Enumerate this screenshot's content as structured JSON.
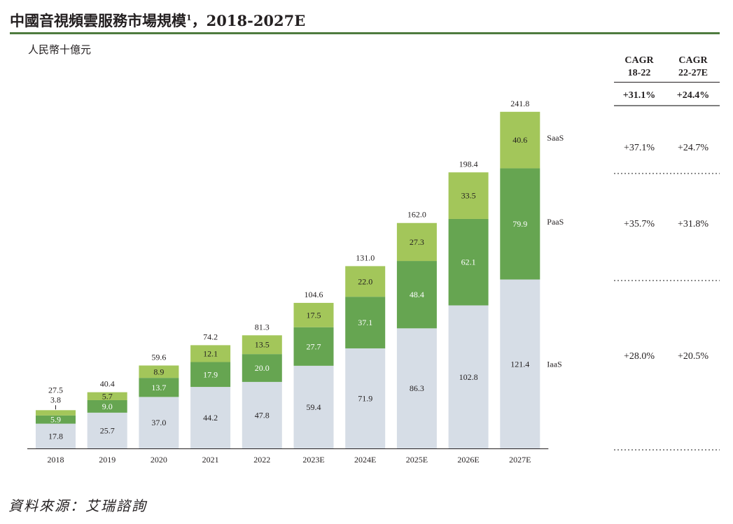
{
  "title": "中國音視頻雲服務市場規模",
  "title_footnote": "1",
  "title_range": "，2018-2027E",
  "unit": "人民幣十億元",
  "source": "資料來源：艾瑞諮詢",
  "colors": {
    "iaas": "#d6dde6",
    "paas": "#66a551",
    "saas": "#a3c65a",
    "rule": "#4e7b3f",
    "text": "#231f20"
  },
  "chart_data": {
    "type": "bar",
    "stacked": true,
    "title": "中國音視頻雲服務市場規模，2018-2027E",
    "ylabel": "人民幣十億元",
    "categories": [
      "2018",
      "2019",
      "2020",
      "2021",
      "2022",
      "2023E",
      "2024E",
      "2025E",
      "2026E",
      "2027E"
    ],
    "series": [
      {
        "name": "IaaS",
        "values": [
          17.8,
          25.7,
          37.0,
          44.2,
          47.8,
          59.4,
          71.9,
          86.3,
          102.8,
          121.4
        ]
      },
      {
        "name": "PaaS",
        "values": [
          5.9,
          9.0,
          13.7,
          17.9,
          20.0,
          27.7,
          37.1,
          48.4,
          62.1,
          79.9
        ]
      },
      {
        "name": "SaaS",
        "values": [
          3.8,
          5.7,
          8.9,
          12.1,
          13.5,
          17.5,
          22.0,
          27.3,
          33.5,
          40.6
        ]
      }
    ],
    "totals": [
      "27.5",
      "40.4",
      "59.6",
      "74.2",
      "81.3",
      "104.6",
      "131.0",
      "162.0",
      "198.4",
      "241.8"
    ],
    "value_labels": {
      "IaaS": [
        "17.8",
        "25.7",
        "37.0",
        "44.2",
        "47.8",
        "59.4",
        "71.9",
        "86.3",
        "102.8",
        "121.4"
      ],
      "PaaS": [
        "5.9",
        "9.0",
        "13.7",
        "17.9",
        "20.0",
        "27.7",
        "37.1",
        "48.4",
        "62.1",
        "79.9"
      ],
      "SaaS": [
        "3.8",
        "5.7",
        "8.9",
        "12.1",
        "13.5",
        "17.5",
        "22.0",
        "27.3",
        "33.5",
        "40.6"
      ]
    },
    "ylim": [
      0,
      241.8
    ],
    "grid": false,
    "cagr_table": {
      "headers": [
        [
          "CAGR",
          "18-22"
        ],
        [
          "CAGR",
          "22-27E"
        ]
      ],
      "total": [
        "+31.1%",
        "+24.4%"
      ],
      "rows": [
        {
          "series": "SaaS",
          "values": [
            "+37.1%",
            "+24.7%"
          ]
        },
        {
          "series": "PaaS",
          "values": [
            "+35.7%",
            "+31.8%"
          ]
        },
        {
          "series": "IaaS",
          "values": [
            "+28.0%",
            "+20.5%"
          ]
        }
      ]
    }
  }
}
